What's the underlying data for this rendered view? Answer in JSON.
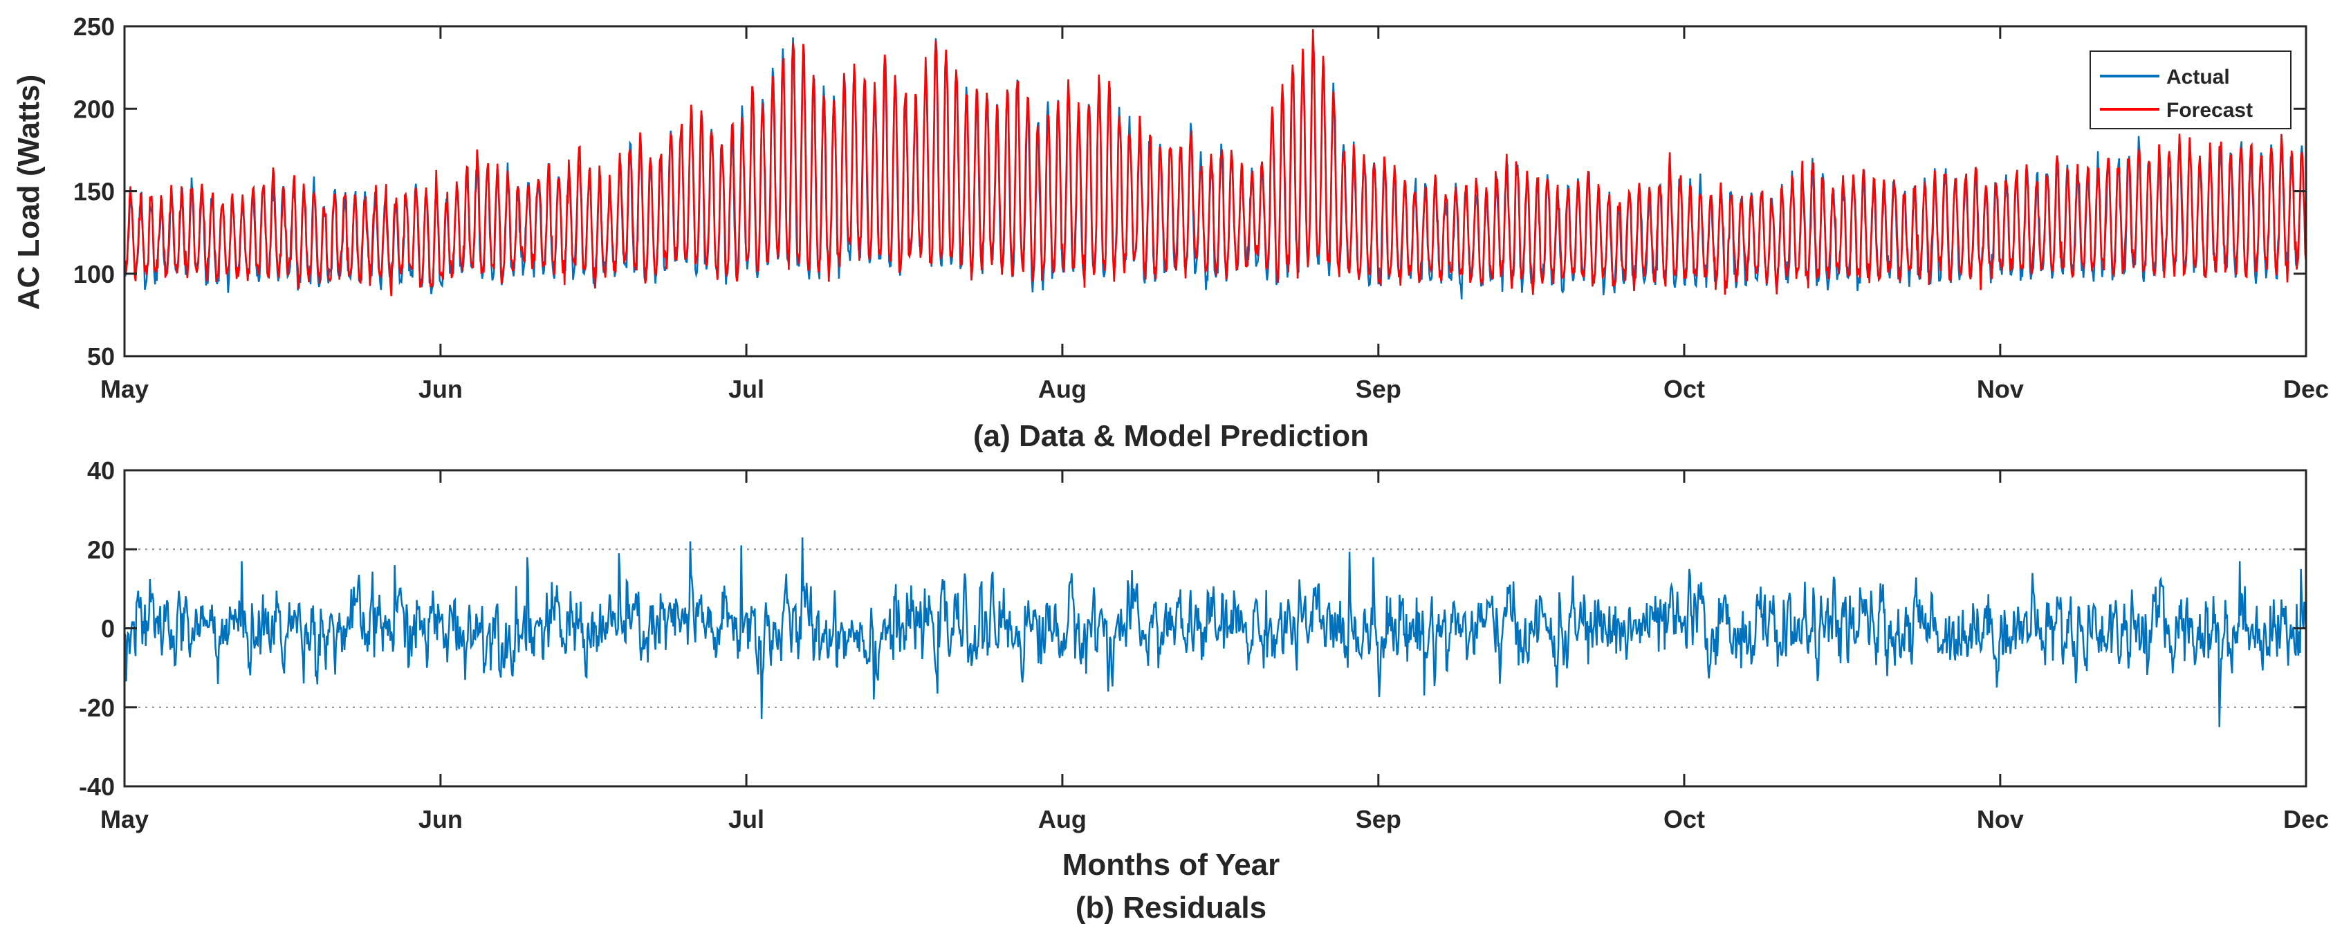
{
  "chart_data": [
    {
      "type": "line",
      "panel": "top",
      "caption": "(a) Data & Model Prediction",
      "xlabel": "",
      "ylabel": "AC Load (Watts)",
      "ylim": [
        50,
        250
      ],
      "yticks": [
        50,
        100,
        150,
        200,
        250
      ],
      "x_range_days": [
        0,
        214
      ],
      "xtick_days": [
        0,
        31,
        61,
        92,
        123,
        153,
        184,
        214
      ],
      "xtick_labels": [
        "May",
        "Jun",
        "Jul",
        "Aug",
        "Sep",
        "Oct",
        "Nov",
        "Dec"
      ],
      "legend": [
        "Actual",
        "Forecast"
      ],
      "legend_position": "top-right",
      "series": [
        {
          "name": "Actual",
          "color": "#0072BD"
        },
        {
          "name": "Forecast",
          "color": "#FF0000"
        }
      ],
      "daily_profile_note": "Hourly data with daily cycle; daily peak (W) and nightly minimum (W) per day from May 1 to Dec 1",
      "daily_peak": [
        150,
        148,
        145,
        140,
        146,
        148,
        150,
        149,
        147,
        145,
        143,
        142,
        150,
        155,
        158,
        150,
        152,
        150,
        148,
        140,
        150,
        145,
        148,
        150,
        147,
        146,
        145,
        150,
        152,
        150,
        148,
        142,
        150,
        160,
        165,
        163,
        160,
        158,
        150,
        155,
        160,
        162,
        158,
        165,
        170,
        160,
        158,
        150,
        165,
        175,
        180,
        168,
        172,
        185,
        190,
        200,
        195,
        188,
        182,
        190,
        195,
        210,
        205,
        220,
        230,
        240,
        235,
        218,
        210,
        205,
        220,
        225,
        215,
        210,
        230,
        220,
        210,
        205,
        225,
        240,
        235,
        220,
        210,
        215,
        205,
        200,
        212,
        220,
        205,
        190,
        198,
        205,
        210,
        200,
        205,
        215,
        212,
        195,
        188,
        185,
        180,
        175,
        180,
        178,
        185,
        170,
        168,
        175,
        170,
        165,
        160,
        165,
        200,
        210,
        225,
        235,
        240,
        225,
        210,
        178,
        172,
        170,
        168,
        165,
        158,
        155,
        150,
        150,
        155,
        148,
        152,
        155,
        150,
        148,
        160,
        165,
        168,
        160,
        155,
        158,
        150,
        152,
        155,
        160,
        150,
        148,
        145,
        150,
        152,
        148,
        158,
        165,
        160,
        155,
        150,
        148,
        152,
        150,
        145,
        148,
        150,
        145,
        150,
        155,
        160,
        162,
        158,
        150,
        155,
        158,
        160,
        155,
        150,
        158,
        148,
        150,
        155,
        160,
        162,
        158,
        160,
        162,
        150,
        155,
        158,
        160,
        162,
        158,
        160,
        165,
        160,
        162,
        158,
        165,
        170,
        168,
        172,
        175,
        170,
        168,
        172,
        180,
        175,
        170,
        172,
        178,
        175,
        180,
        175,
        172,
        178,
        180,
        170,
        175
      ],
      "daily_min": [
        100,
        98,
        95,
        100,
        102,
        98,
        100,
        100,
        98,
        96,
        97,
        100,
        98,
        100,
        99,
        101,
        97,
        95,
        96,
        95,
        98,
        100,
        95,
        97,
        99,
        96,
        94,
        95,
        98,
        92,
        90,
        95,
        98,
        100,
        102,
        100,
        98,
        100,
        102,
        105,
        106,
        104,
        102,
        100,
        103,
        98,
        95,
        98,
        102,
        104,
        100,
        96,
        98,
        105,
        110,
        108,
        100,
        102,
        98,
        100,
        101,
        103,
        100,
        105,
        108,
        106,
        104,
        100,
        98,
        102,
        105,
        110,
        112,
        108,
        106,
        104,
        100,
        110,
        112,
        108,
        105,
        106,
        104,
        102,
        105,
        108,
        100,
        102,
        104,
        100,
        98,
        100,
        102,
        104,
        100,
        98,
        100,
        102,
        104,
        106,
        100,
        98,
        102,
        104,
        105,
        102,
        100,
        98,
        100,
        102,
        104,
        105,
        100,
        98,
        102,
        104,
        105,
        110,
        108,
        100,
        102,
        98,
        96,
        95,
        94,
        96,
        98,
        95,
        97,
        96,
        95,
        94,
        96,
        95,
        97,
        98,
        96,
        95,
        94,
        96,
        95,
        94,
        96,
        98,
        95,
        94,
        92,
        95,
        96,
        97,
        95,
        96,
        94,
        95,
        97,
        96,
        95,
        94,
        96,
        97,
        98,
        96,
        95,
        97,
        98,
        96,
        95,
        97,
        98,
        97,
        95,
        96,
        98,
        99,
        97,
        98,
        96,
        99,
        100,
        98,
        97,
        99,
        100,
        98,
        100,
        101,
        99,
        100,
        102,
        100,
        101,
        100,
        99,
        101,
        103,
        100,
        102,
        104,
        101,
        100,
        102,
        104,
        103,
        102,
        101,
        103,
        104,
        102,
        100,
        101,
        103,
        102,
        104,
        105
      ]
    },
    {
      "type": "line",
      "panel": "bottom",
      "caption": "(b) Residuals",
      "xlabel": "Months of Year",
      "ylabel": "",
      "ylim": [
        -40,
        40
      ],
      "yticks": [
        -40,
        -20,
        0,
        20,
        40
      ],
      "reference_lines": [
        20,
        -20
      ],
      "x_range_days": [
        0,
        214
      ],
      "xtick_days": [
        0,
        31,
        61,
        92,
        123,
        153,
        184,
        214
      ],
      "xtick_labels": [
        "May",
        "Jun",
        "Jul",
        "Aug",
        "Sep",
        "Oct",
        "Nov",
        "Dec"
      ],
      "series": [
        {
          "name": "Residuals",
          "color": "#0072BD"
        }
      ],
      "residual_note": "Approximate residual noise range: mostly within ±10 W, spikes to about +22 and -25 W",
      "notable_spikes": [
        {
          "day": 11,
          "value": 17
        },
        {
          "day": 26,
          "value": 16
        },
        {
          "day": 39,
          "value": 18
        },
        {
          "day": 48,
          "value": 19
        },
        {
          "day": 55,
          "value": 22
        },
        {
          "day": 60,
          "value": 21
        },
        {
          "day": 62,
          "value": -23
        },
        {
          "day": 66,
          "value": 23
        },
        {
          "day": 73,
          "value": -18
        },
        {
          "day": 96,
          "value": -16
        },
        {
          "day": 122,
          "value": 18
        },
        {
          "day": 127,
          "value": -17
        },
        {
          "day": 140,
          "value": -15
        },
        {
          "day": 153,
          "value": 15
        },
        {
          "day": 205,
          "value": -25
        },
        {
          "day": 207,
          "value": 17
        },
        {
          "day": 213,
          "value": 15
        }
      ]
    }
  ]
}
